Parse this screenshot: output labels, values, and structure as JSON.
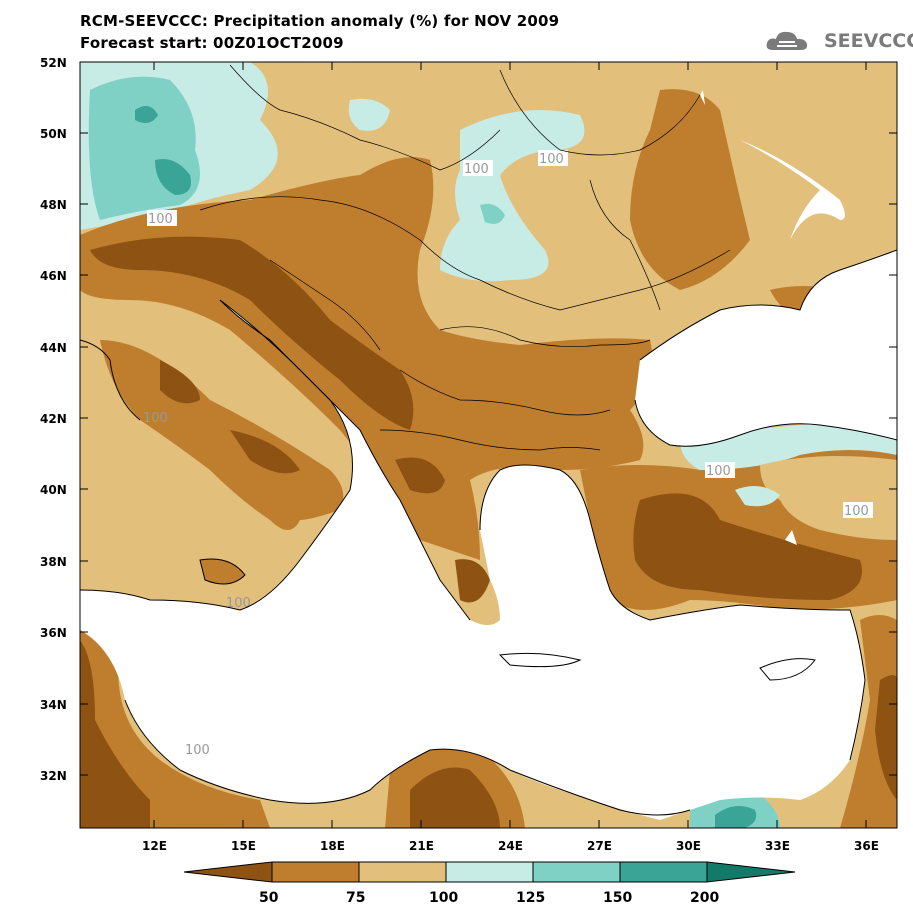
{
  "header": {
    "title_line1": "RCM-SEEVCCC: Precipitation anomaly (%) for NOV 2009",
    "title_line2": "Forecast start: 00Z01OCT2009",
    "logo_text": "SEEVCCC"
  },
  "axes": {
    "lat_labels": [
      "52N",
      "50N",
      "48N",
      "46N",
      "44N",
      "42N",
      "40N",
      "38N",
      "36N",
      "34N",
      "32N"
    ],
    "lon_labels": [
      "12E",
      "15E",
      "18E",
      "21E",
      "24E",
      "27E",
      "30E",
      "33E",
      "36E"
    ]
  },
  "contour_labels": [
    "100",
    "100",
    "100",
    "100",
    "100",
    "100",
    "100",
    "100"
  ],
  "colorbar": {
    "levels": [
      "50",
      "75",
      "100",
      "125",
      "150",
      "200"
    ],
    "colors": [
      "#8e5213",
      "#bf7d2e",
      "#e2bf7a",
      "#c7ebe5",
      "#7ed1c4",
      "#3aa597",
      "#137a6a"
    ]
  },
  "palette": {
    "dark_brown": "#8e5213",
    "brown": "#bf7d2e",
    "tan": "#e2bf7a",
    "light_teal": "#c7ebe5",
    "teal": "#7ed1c4",
    "dark_teal": "#3aa597"
  }
}
